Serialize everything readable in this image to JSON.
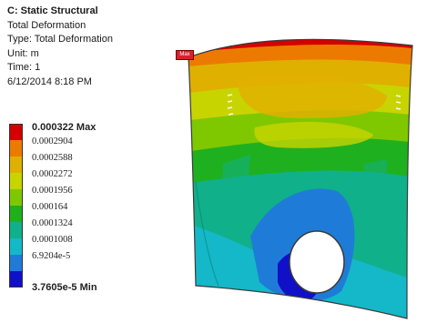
{
  "info": {
    "title": "C: Static Structural",
    "line1": "Total Deformation",
    "line2": "Type: Total Deformation",
    "line3": "Unit: m",
    "line4": "Time: 1",
    "line5": "6/12/2014 8:18 PM"
  },
  "legend": {
    "max_label": "0.000322 Max",
    "labels": [
      "0.0002904",
      "0.0002588",
      "0.0002272",
      "0.0001956",
      "0.000164",
      "0.0001324",
      "0.0001008",
      "6.9204e-5"
    ],
    "min_label": "3.7605e-5 Min",
    "colors": [
      "#d40000",
      "#ec7a00",
      "#e0b000",
      "#c8d400",
      "#7fc800",
      "#1fb020",
      "#10b08a",
      "#14b8c8",
      "#1e7cd8",
      "#1010c8"
    ]
  },
  "probe": {
    "label": "Max"
  }
}
